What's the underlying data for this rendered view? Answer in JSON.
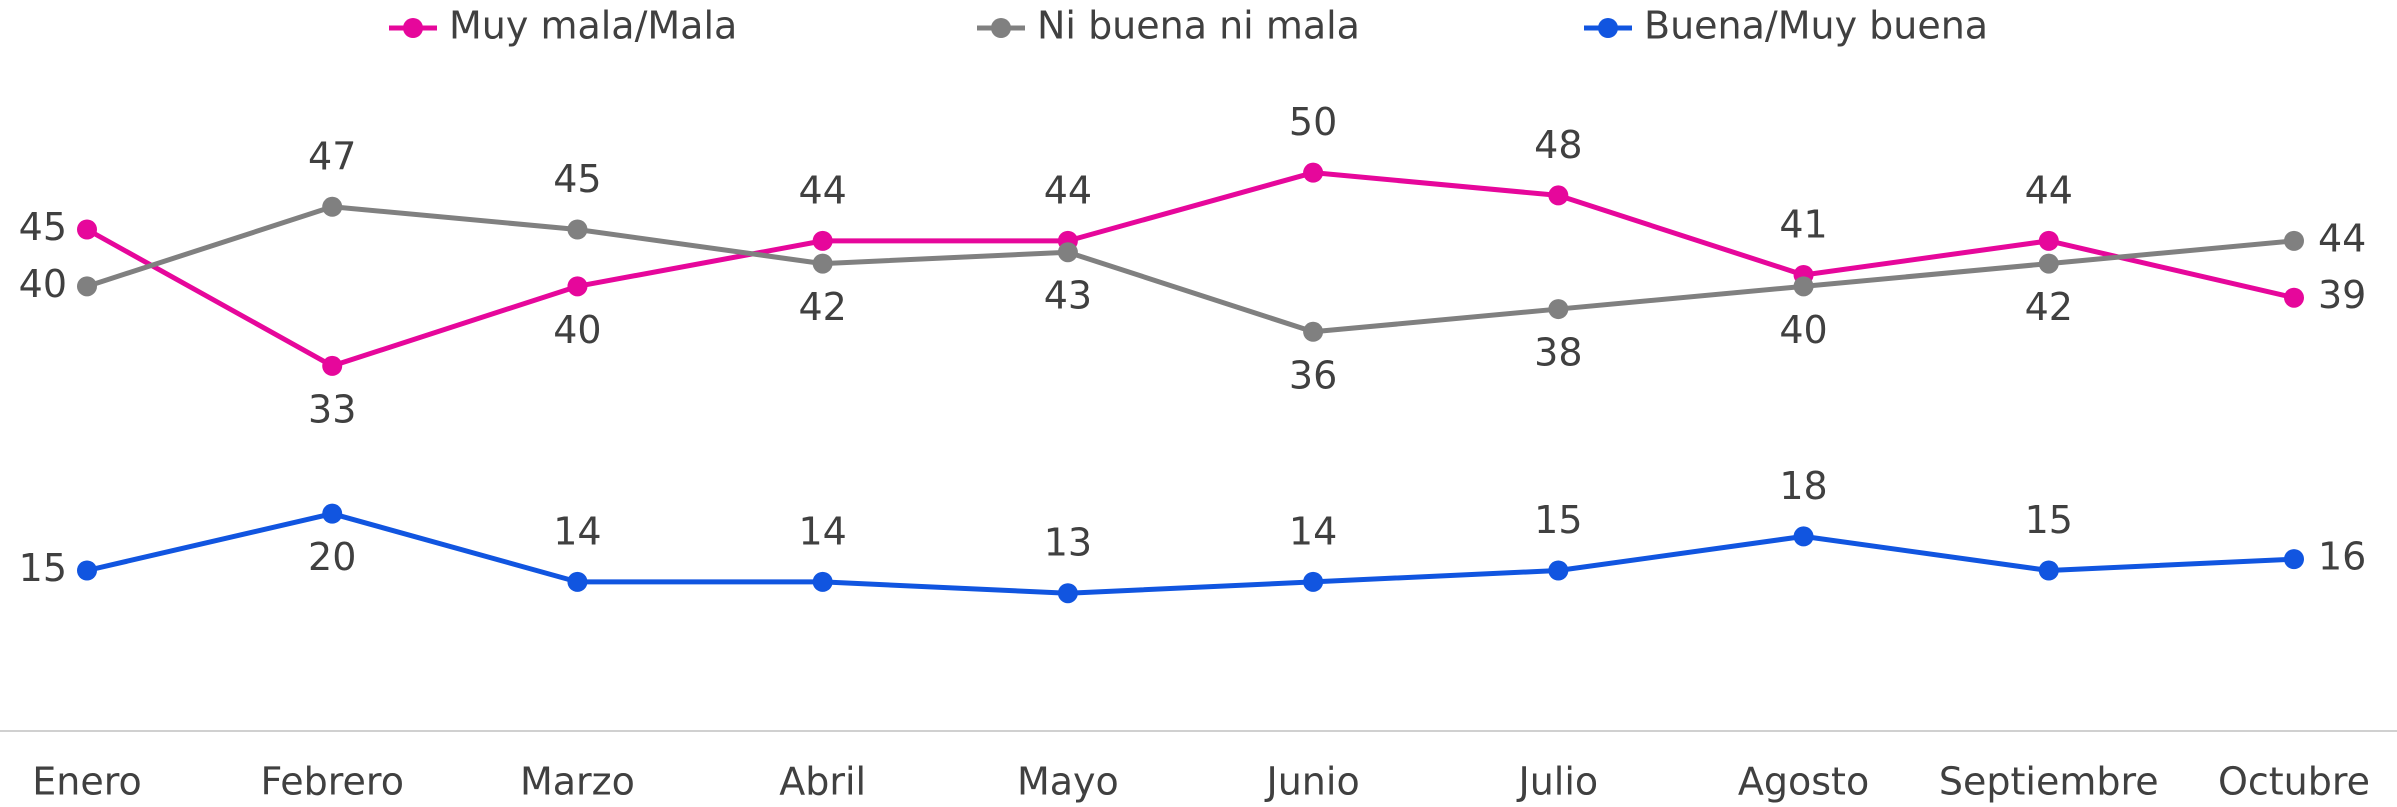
{
  "chart_data": {
    "type": "line",
    "categories": [
      "Enero",
      "Febrero",
      "Marzo",
      "Abril",
      "Mayo",
      "Junio",
      "Julio",
      "Agosto",
      "Septiembre",
      "Octubre"
    ],
    "series": [
      {
        "name": "Muy mala/Mala",
        "color": "#e6079b",
        "values": [
          45,
          33,
          40,
          44,
          44,
          50,
          48,
          41,
          44,
          39
        ]
      },
      {
        "name": "Ni buena ni mala",
        "color": "#808080",
        "values": [
          40,
          47,
          45,
          42,
          43,
          36,
          38,
          40,
          42,
          44
        ]
      },
      {
        "name": "Buena/Muy buena",
        "color": "#1155e0",
        "values": [
          15,
          20,
          14,
          14,
          13,
          14,
          15,
          18,
          15,
          16
        ]
      }
    ],
    "ylim": [
      0,
      60
    ],
    "legend": "top"
  }
}
